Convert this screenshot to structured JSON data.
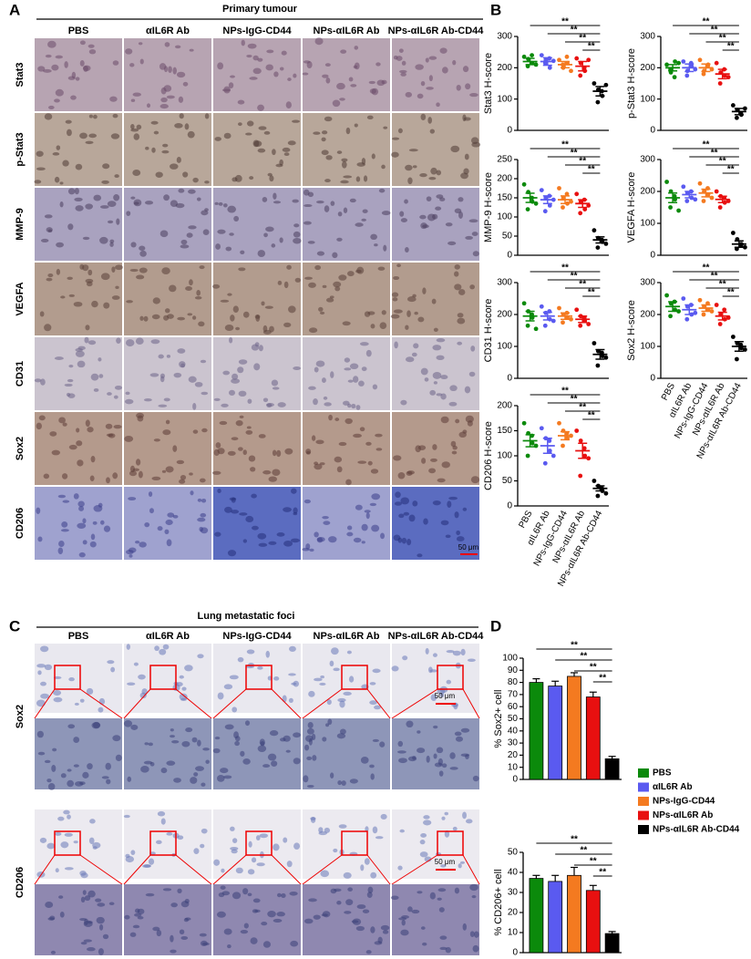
{
  "figure": {
    "panel_a": {
      "label": "A",
      "title": "Primary tumour",
      "columns": [
        "PBS",
        "αIL6R Ab",
        "NPs-IgG-CD44",
        "NPs-αIL6R Ab",
        "NPs-αIL6R Ab-CD44"
      ],
      "rows": [
        "Stat3",
        "p-Stat3",
        "MMP-9",
        "VEGFA",
        "CD31",
        "Sox2",
        "CD206"
      ],
      "scale_label": "50 μm"
    },
    "panel_b": {
      "label": "B"
    },
    "panel_c": {
      "label": "C",
      "title": "Lung metastatic foci",
      "columns": [
        "PBS",
        "αIL6R Ab",
        "NPs-IgG-CD44",
        "NPs-αIL6R Ab",
        "NPs-αIL6R Ab-CD44"
      ],
      "rows": [
        "Sox2",
        "CD206"
      ],
      "scale_labels": [
        "50 μm",
        "50 μm"
      ]
    },
    "panel_d": {
      "label": "D"
    },
    "legend": {
      "names": [
        "PBS",
        "αIL6R Ab",
        "NPs-IgG-CD44",
        "NPs-αIL6R Ab",
        "NPs-αIL6R Ab-CD44"
      ],
      "colors": [
        "#0b8a0b",
        "#5a5af0",
        "#f47a20",
        "#e81010",
        "#000000"
      ]
    }
  },
  "chart_data": [
    {
      "type": "dot",
      "ylabel": "Stat3 H-score",
      "ylim": [
        0,
        300
      ],
      "yticks": [
        0,
        100,
        200,
        300
      ],
      "colors": [
        "#0b8a0b",
        "#5a5af0",
        "#f47a20",
        "#e81010",
        "#000000"
      ],
      "points": [
        [
          235,
          228,
          215,
          205,
          240,
          210
        ],
        [
          240,
          225,
          200,
          215,
          230,
          222
        ],
        [
          225,
          200,
          215,
          210,
          235,
          190
        ],
        [
          230,
          215,
          190,
          175,
          200,
          225
        ],
        [
          150,
          130,
          110,
          90,
          125,
          145
        ]
      ],
      "means": [
        220,
        220,
        210,
        205,
        125
      ],
      "errors": [
        10,
        12,
        10,
        15,
        15
      ],
      "significance": [
        "**",
        "**",
        "**",
        "**"
      ]
    },
    {
      "type": "dot",
      "ylabel": "p-Stat3 H-score",
      "ylim": [
        0,
        300
      ],
      "yticks": [
        0,
        100,
        200,
        300
      ],
      "colors": [
        "#0b8a0b",
        "#5a5af0",
        "#f47a20",
        "#e81010",
        "#000000"
      ],
      "points": [
        [
          210,
          185,
          220,
          195,
          170,
          215
        ],
        [
          220,
          190,
          205,
          175,
          215,
          195
        ],
        [
          225,
          190,
          210,
          180,
          205,
          195
        ],
        [
          215,
          185,
          175,
          150,
          195,
          170
        ],
        [
          80,
          65,
          50,
          40,
          55,
          70
        ]
      ],
      "means": [
        200,
        200,
        200,
        180,
        60
      ],
      "errors": [
        10,
        12,
        12,
        15,
        10
      ],
      "significance": [
        "**",
        "**",
        "**",
        "**"
      ]
    },
    {
      "type": "dot",
      "ylabel": "MMP-9 H-score",
      "ylim": [
        0,
        250
      ],
      "yticks": [
        0,
        50,
        100,
        150,
        200,
        250
      ],
      "colors": [
        "#0b8a0b",
        "#5a5af0",
        "#f47a20",
        "#e81010",
        "#000000"
      ],
      "points": [
        [
          185,
          165,
          140,
          120,
          150,
          135
        ],
        [
          170,
          150,
          130,
          115,
          155,
          145
        ],
        [
          175,
          150,
          135,
          125,
          160,
          140
        ],
        [
          160,
          140,
          120,
          110,
          145,
          130
        ],
        [
          65,
          45,
          35,
          20,
          40,
          30
        ]
      ],
      "means": [
        150,
        145,
        145,
        135,
        40
      ],
      "errors": [
        12,
        10,
        10,
        10,
        8
      ],
      "significance": [
        "**",
        "**",
        "**",
        "**"
      ]
    },
    {
      "type": "dot",
      "ylabel": "VEGFA H-score",
      "ylim": [
        0,
        300
      ],
      "yticks": [
        0,
        100,
        200,
        300
      ],
      "colors": [
        "#0b8a0b",
        "#5a5af0",
        "#f47a20",
        "#e81010",
        "#000000"
      ],
      "points": [
        [
          230,
          200,
          175,
          150,
          185,
          140
        ],
        [
          215,
          195,
          180,
          170,
          200,
          175
        ],
        [
          225,
          200,
          190,
          170,
          210,
          180
        ],
        [
          200,
          185,
          165,
          150,
          180,
          170
        ],
        [
          70,
          50,
          35,
          20,
          30,
          25
        ]
      ],
      "means": [
        180,
        190,
        195,
        175,
        35
      ],
      "errors": [
        15,
        10,
        12,
        10,
        10
      ],
      "significance": [
        "**",
        "**",
        "**",
        "**"
      ]
    },
    {
      "type": "dot",
      "ylabel": "CD31 H-score",
      "ylim": [
        0,
        300
      ],
      "yticks": [
        0,
        100,
        200,
        300
      ],
      "colors": [
        "#0b8a0b",
        "#5a5af0",
        "#f47a20",
        "#e81010",
        "#000000"
      ],
      "points": [
        [
          235,
          210,
          190,
          165,
          200,
          155
        ],
        [
          225,
          205,
          185,
          165,
          210,
          180
        ],
        [
          220,
          200,
          190,
          175,
          205,
          185
        ],
        [
          215,
          195,
          180,
          165,
          190,
          170
        ],
        [
          110,
          85,
          70,
          40,
          80,
          65
        ]
      ],
      "means": [
        195,
        195,
        195,
        185,
        75
      ],
      "errors": [
        15,
        12,
        10,
        10,
        15
      ],
      "significance": [
        "**",
        "**",
        "**",
        "**"
      ]
    },
    {
      "type": "dot",
      "ylabel": "Sox2 H-score",
      "ylim": [
        0,
        300
      ],
      "yticks": [
        0,
        100,
        200,
        300
      ],
      "categories": [
        "PBS",
        "αIL6R Ab",
        "NPs-IgG-CD44",
        "NPs-αIL6R Ab",
        "NPs-αIL6R Ab-CD44"
      ],
      "colors": [
        "#0b8a0b",
        "#5a5af0",
        "#f47a20",
        "#e81010",
        "#000000"
      ],
      "points": [
        [
          260,
          235,
          215,
          195,
          240,
          210
        ],
        [
          250,
          225,
          200,
          185,
          230,
          205
        ],
        [
          245,
          225,
          215,
          200,
          235,
          210
        ],
        [
          230,
          200,
          185,
          170,
          215,
          190
        ],
        [
          130,
          110,
          95,
          60,
          105,
          90
        ]
      ],
      "means": [
        225,
        215,
        220,
        195,
        100
      ],
      "errors": [
        15,
        15,
        10,
        12,
        15
      ],
      "significance": [
        "**",
        "**",
        "**",
        "**"
      ]
    },
    {
      "type": "dot",
      "ylabel": "CD206 H-score",
      "ylim": [
        0,
        200
      ],
      "yticks": [
        0,
        50,
        100,
        150,
        200
      ],
      "categories": [
        "PBS",
        "αIL6R Ab",
        "NPs-IgG-CD44",
        "NPs-αIL6R Ab",
        "NPs-αIL6R Ab-CD44"
      ],
      "colors": [
        "#0b8a0b",
        "#5a5af0",
        "#f47a20",
        "#e81010",
        "#000000"
      ],
      "points": [
        [
          165,
          145,
          125,
          100,
          140,
          120
        ],
        [
          155,
          135,
          110,
          85,
          130,
          100
        ],
        [
          165,
          150,
          135,
          120,
          145,
          140
        ],
        [
          150,
          130,
          100,
          60,
          115,
          95
        ],
        [
          50,
          40,
          30,
          20,
          35,
          25
        ]
      ],
      "means": [
        130,
        120,
        140,
        110,
        35
      ],
      "errors": [
        12,
        15,
        8,
        15,
        5
      ],
      "significance": [
        "**",
        "**",
        "**",
        "**"
      ]
    },
    {
      "type": "bar",
      "ylabel": "% Sox2+ cell",
      "ylim": [
        0,
        100
      ],
      "yticks": [
        0,
        10,
        20,
        30,
        40,
        50,
        60,
        70,
        80,
        90,
        100
      ],
      "colors": [
        "#0b8a0b",
        "#5a5af0",
        "#f47a20",
        "#e81010",
        "#000000"
      ],
      "values": [
        80,
        77,
        85,
        68,
        17
      ],
      "errors": [
        3,
        4,
        3,
        4,
        2
      ],
      "significance": [
        "**",
        "**",
        "**",
        "**"
      ]
    },
    {
      "type": "bar",
      "ylabel": "% CD206+ cell",
      "ylim": [
        0,
        50
      ],
      "yticks": [
        0,
        10,
        20,
        30,
        40,
        50
      ],
      "colors": [
        "#0b8a0b",
        "#5a5af0",
        "#f47a20",
        "#e81010",
        "#000000"
      ],
      "values": [
        37,
        35.5,
        38.5,
        31,
        9.5
      ],
      "errors": [
        1.5,
        3,
        4,
        2.5,
        1
      ],
      "significance": [
        "**",
        "**",
        "**",
        "**"
      ]
    }
  ]
}
